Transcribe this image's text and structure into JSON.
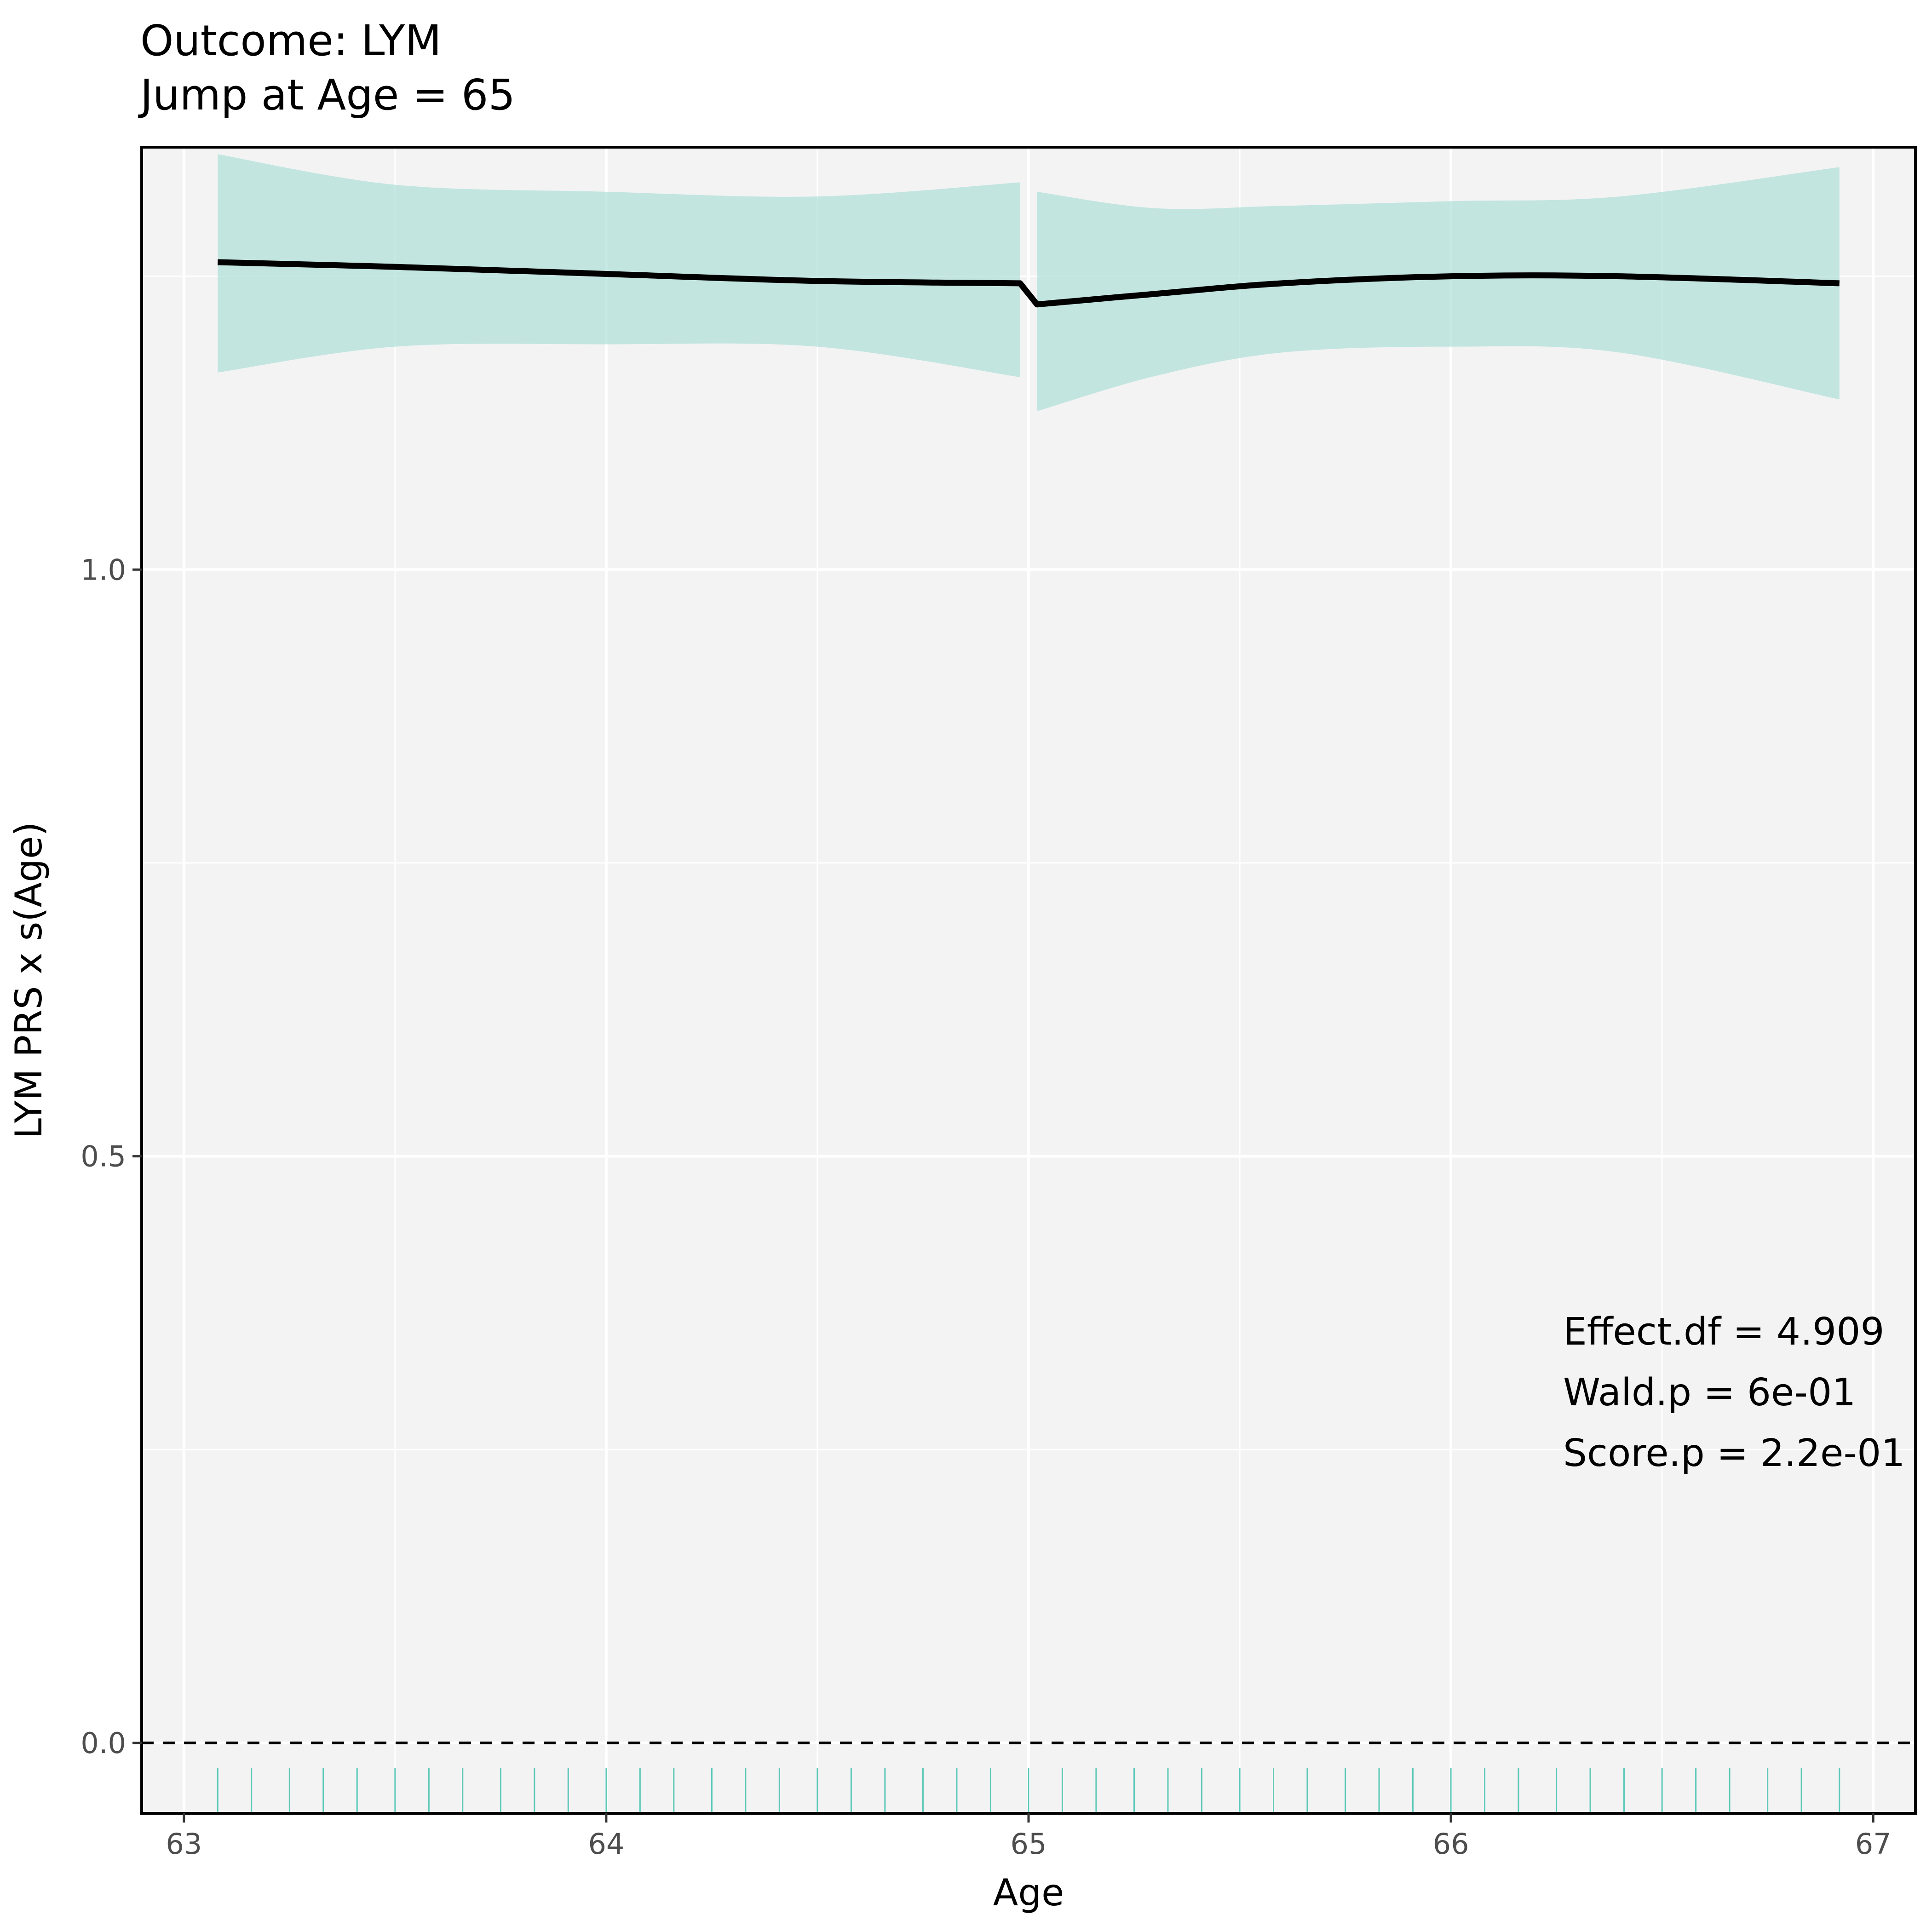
{
  "chart_data": {
    "type": "line",
    "title": "Outcome: LYM",
    "subtitle": "Jump at Age = 65",
    "xlabel": "Age",
    "ylabel": "LYM PRS x s(Age)",
    "xlim": [
      62.9,
      67.1
    ],
    "ylim": [
      -0.06,
      1.36
    ],
    "x_ticks": [
      63,
      64,
      65,
      66,
      67
    ],
    "x_tick_labels": [
      "63",
      "64",
      "65",
      "66",
      "67"
    ],
    "y_ticks": [
      0.0,
      0.5,
      1.0
    ],
    "y_tick_labels": [
      "0.0",
      "0.5",
      "1.0"
    ],
    "grid": true,
    "reference_line_y": 0.0,
    "series": [
      {
        "segments": [
          {
            "x": [
              63.08,
              63.5,
              64.0,
              64.5,
              64.98
            ],
            "y": [
              1.262,
              1.258,
              1.252,
              1.246,
              1.244
            ],
            "lower": [
              1.168,
              1.19,
              1.192,
              1.19,
              1.164
            ],
            "upper": [
              1.354,
              1.328,
              1.322,
              1.318,
              1.33
            ]
          },
          {
            "x": [
              65.02,
              65.3,
              65.6,
              66.0,
              66.4,
              66.92
            ],
            "y": [
              1.226,
              1.235,
              1.244,
              1.25,
              1.25,
              1.244
            ],
            "lower": [
              1.135,
              1.165,
              1.185,
              1.19,
              1.185,
              1.145
            ],
            "upper": [
              1.322,
              1.308,
              1.31,
              1.314,
              1.318,
              1.343
            ]
          }
        ]
      }
    ],
    "rug_x": [
      63.08,
      63.16,
      63.25,
      63.33,
      63.41,
      63.5,
      63.58,
      63.66,
      63.75,
      63.83,
      63.91,
      64.0,
      64.08,
      64.16,
      64.25,
      64.33,
      64.41,
      64.5,
      64.58,
      64.66,
      64.75,
      64.83,
      64.91,
      65.0,
      65.08,
      65.16,
      65.25,
      65.33,
      65.41,
      65.5,
      65.58,
      65.66,
      65.75,
      65.83,
      65.91,
      66.0,
      66.08,
      66.16,
      66.25,
      66.33,
      66.41,
      66.5,
      66.58,
      66.66,
      66.75,
      66.83,
      66.92
    ],
    "annotations": [
      "Effect.df = 4.909",
      "Wald.p = 6e-01",
      "Score.p = 2.2e-01"
    ],
    "colors": {
      "band": "#a8ddd6",
      "line": "#000000",
      "rug": "#5cc8b8",
      "panel": "#f3f3f3",
      "grid": "#ffffff"
    }
  }
}
